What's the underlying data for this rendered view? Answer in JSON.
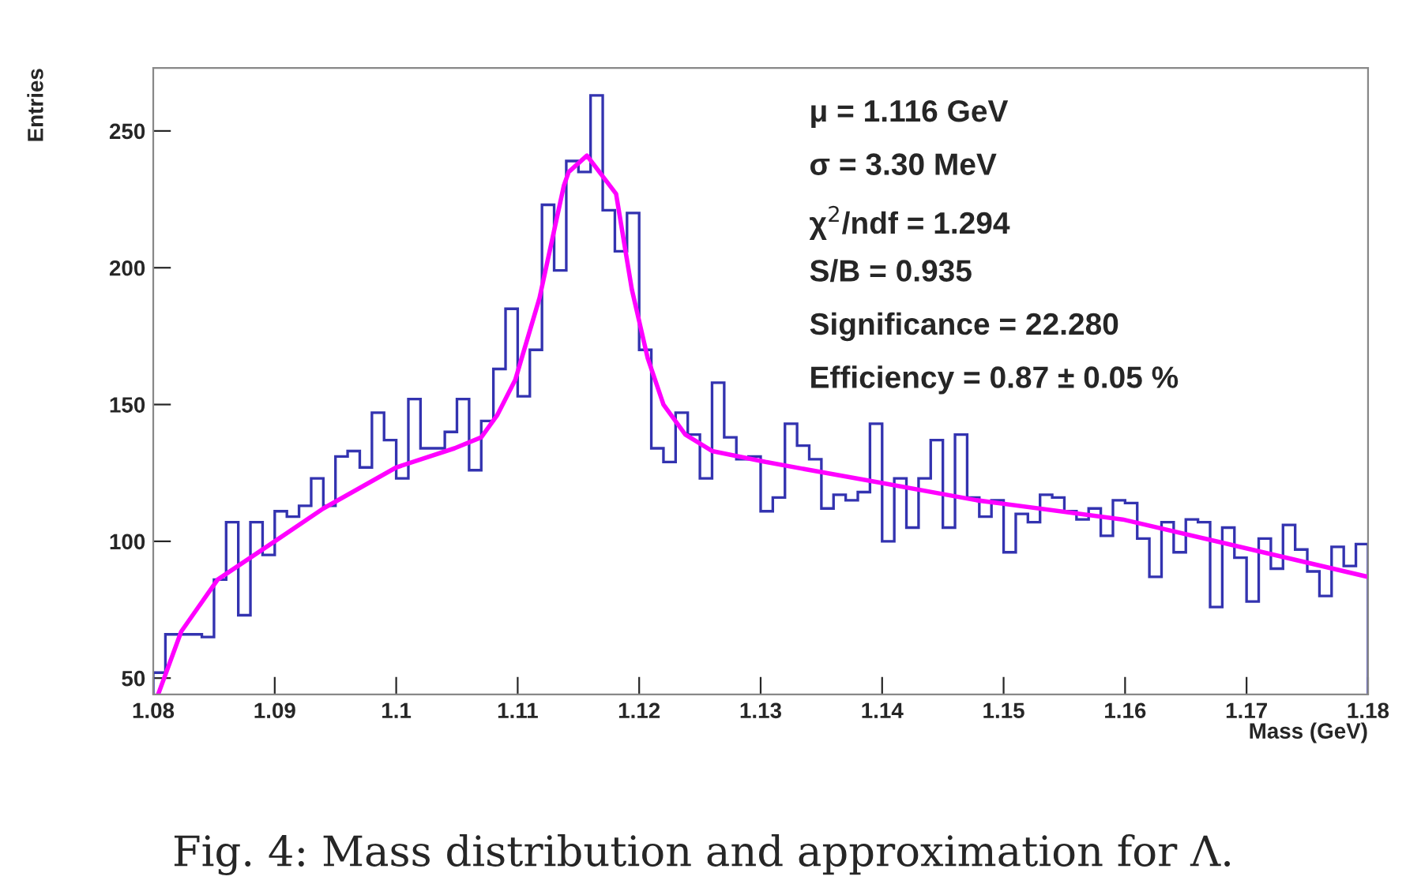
{
  "chart_data": {
    "type": "histogram",
    "xlabel": "Mass (GeV)",
    "ylabel": "Entries",
    "bins": [
      1.08,
      1.081,
      1.082,
      1.083,
      1.084,
      1.085,
      1.086,
      1.087,
      1.088,
      1.089,
      1.09,
      1.091,
      1.092,
      1.093,
      1.094,
      1.095,
      1.096,
      1.097,
      1.098,
      1.099,
      1.1,
      1.101,
      1.102,
      1.103,
      1.104,
      1.105,
      1.106,
      1.107,
      1.108,
      1.109,
      1.11,
      1.111,
      1.112,
      1.113,
      1.114,
      1.115,
      1.116,
      1.117,
      1.118,
      1.119,
      1.12,
      1.121,
      1.122,
      1.123,
      1.124,
      1.125,
      1.126,
      1.127,
      1.128,
      1.129,
      1.13,
      1.131,
      1.132,
      1.133,
      1.134,
      1.135,
      1.136,
      1.137,
      1.138,
      1.139,
      1.14,
      1.141,
      1.142,
      1.143,
      1.144,
      1.145,
      1.146,
      1.147,
      1.148,
      1.149,
      1.15,
      1.151,
      1.152,
      1.153,
      1.154,
      1.155,
      1.156,
      1.157,
      1.158,
      1.159,
      1.16,
      1.161,
      1.162,
      1.163,
      1.164,
      1.165,
      1.166,
      1.167,
      1.168,
      1.169,
      1.17,
      1.171,
      1.172,
      1.173,
      1.174,
      1.175,
      1.176,
      1.177,
      1.178,
      1.179,
      1.18
    ],
    "series": [
      {
        "color": "#3333b0",
        "values": [
          52,
          66,
          66,
          66,
          65,
          86,
          107,
          73,
          107,
          95,
          111,
          109,
          113,
          123,
          113,
          131,
          133,
          127,
          147,
          137,
          123,
          152,
          134,
          134,
          140,
          152,
          126,
          144,
          163,
          185,
          153,
          170,
          223,
          199,
          239,
          235,
          263,
          221,
          206,
          220,
          170,
          134,
          129,
          147,
          139,
          123,
          158,
          138,
          130,
          131,
          111,
          116,
          143,
          135,
          130,
          112,
          117,
          115,
          118,
          143,
          100,
          123,
          105,
          123,
          137,
          105,
          139,
          116,
          109,
          115,
          96,
          110,
          107,
          117,
          116,
          111,
          108,
          112,
          102,
          115,
          114,
          101,
          87,
          107,
          96,
          108,
          107,
          76,
          105,
          94,
          78,
          101,
          90,
          106,
          97,
          89,
          80,
          98,
          91,
          99
        ]
      },
      {
        "type": "line",
        "color": "#ff00ff",
        "x": [
          1.0804,
          1.0823,
          1.0853,
          1.09,
          1.094,
          1.1,
          1.1048,
          1.107,
          1.1083,
          1.1098,
          1.1118,
          1.1138,
          1.1142,
          1.1157,
          1.1181,
          1.1194,
          1.1207,
          1.122,
          1.1238,
          1.126,
          1.1304,
          1.1391,
          1.1478,
          1.1598,
          1.18
        ],
        "values": [
          44,
          67,
          86,
          100,
          112,
          127,
          134,
          138,
          146,
          159,
          189,
          230,
          235,
          241,
          227,
          192,
          167,
          150,
          139,
          133,
          129,
          122,
          115,
          108,
          87
        ]
      }
    ],
    "xlim": [
      1.08,
      1.18
    ],
    "xticks": [
      1.08,
      1.09,
      1.1,
      1.11,
      1.12,
      1.13,
      1.14,
      1.15,
      1.16,
      1.17,
      1.18
    ],
    "ylim": [
      44,
      273
    ],
    "yticks": [
      50,
      100,
      150,
      200,
      250
    ],
    "grid": false,
    "legend": false,
    "annotations": [
      "μ = 1.116 GeV",
      "σ = 3.30 MeV",
      "χ$^{2}$/ndf = 1.294",
      "S/B = 0.935",
      "Significance = 22.280",
      "Efficiency = 0.87 ± 0.05 %",
      "Fig. 4: Mass distribution and approximation for Λ."
    ]
  }
}
